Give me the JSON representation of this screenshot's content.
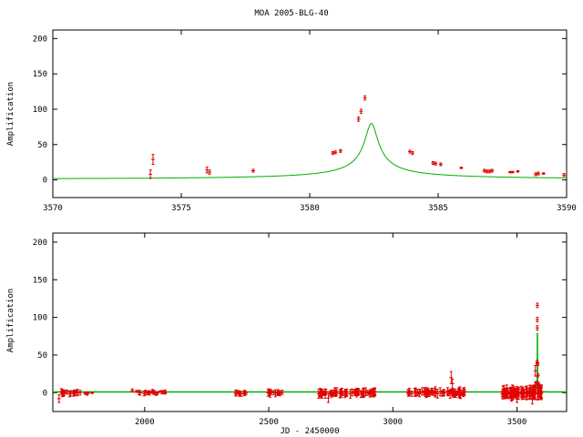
{
  "chart_data": [
    {
      "type": "line",
      "title": "MOA 2005-BLG-40",
      "ylabel": "Amplification",
      "xlabel": "",
      "xlim": [
        3570,
        3590
      ],
      "ylim": [
        -25,
        212
      ],
      "xticks": [
        3570,
        3575,
        3580,
        3585,
        3590
      ],
      "yticks": [
        0,
        50,
        100,
        150,
        200
      ],
      "grid": false,
      "model": {
        "t0": 3582.4,
        "u0": 0.006,
        "tE": 20.0,
        "rho": 0.011
      },
      "data_points": [
        {
          "x": 3573.8,
          "y": 8,
          "err": 6
        },
        {
          "x": 3573.9,
          "y": 29,
          "err": 7
        },
        {
          "x": 3576.0,
          "y": 14,
          "err": 4
        },
        {
          "x": 3576.1,
          "y": 11,
          "err": 3
        },
        {
          "x": 3577.8,
          "y": 13,
          "err": 2
        },
        {
          "x": 3580.9,
          "y": 38,
          "err": 2
        },
        {
          "x": 3581.0,
          "y": 39,
          "err": 2
        },
        {
          "x": 3581.2,
          "y": 41,
          "err": 2
        },
        {
          "x": 3581.9,
          "y": 86,
          "err": 3
        },
        {
          "x": 3582.0,
          "y": 97,
          "err": 3
        },
        {
          "x": 3582.15,
          "y": 116,
          "err": 3
        },
        {
          "x": 3583.9,
          "y": 40,
          "err": 2
        },
        {
          "x": 3584.0,
          "y": 38,
          "err": 2
        },
        {
          "x": 3584.8,
          "y": 24,
          "err": 2
        },
        {
          "x": 3584.9,
          "y": 23,
          "err": 2
        },
        {
          "x": 3585.1,
          "y": 22,
          "err": 2
        },
        {
          "x": 3585.9,
          "y": 17,
          "err": 1
        },
        {
          "x": 3586.8,
          "y": 13,
          "err": 2
        },
        {
          "x": 3586.9,
          "y": 12,
          "err": 2
        },
        {
          "x": 3587.0,
          "y": 12,
          "err": 2
        },
        {
          "x": 3587.1,
          "y": 13,
          "err": 2
        },
        {
          "x": 3587.8,
          "y": 11,
          "err": 1
        },
        {
          "x": 3587.9,
          "y": 11,
          "err": 1
        },
        {
          "x": 3588.1,
          "y": 12,
          "err": 1
        },
        {
          "x": 3588.8,
          "y": 8,
          "err": 2
        },
        {
          "x": 3588.9,
          "y": 9,
          "err": 2
        },
        {
          "x": 3589.1,
          "y": 9,
          "err": 1
        },
        {
          "x": 3589.9,
          "y": 7,
          "err": 2
        }
      ]
    },
    {
      "type": "line",
      "title": "",
      "ylabel": "Amplification",
      "xlabel": "JD - 2450000",
      "xlim": [
        1630,
        3700
      ],
      "ylim": [
        -25,
        212
      ],
      "xticks": [
        2000,
        2500,
        3000,
        3500
      ],
      "yticks": [
        0,
        50,
        100,
        150,
        200
      ],
      "grid": false,
      "model": {
        "t0": 3582.4,
        "u0": 0.006,
        "tE": 20.0,
        "rho": 0.011
      },
      "data_clusters": [
        {
          "from": 1650,
          "to": 1730,
          "points": 18,
          "err": 4
        },
        {
          "from": 1760,
          "to": 1790,
          "points": 4,
          "err": 2
        },
        {
          "from": 1960,
          "to": 2050,
          "points": 14,
          "err": 3
        },
        {
          "from": 2050,
          "to": 2090,
          "points": 8,
          "err": 2
        },
        {
          "from": 2360,
          "to": 2420,
          "points": 12,
          "err": 3
        },
        {
          "from": 2480,
          "to": 2560,
          "points": 14,
          "err": 4
        },
        {
          "from": 2700,
          "to": 2930,
          "points": 70,
          "err": 5
        },
        {
          "from": 3060,
          "to": 3290,
          "points": 70,
          "err": 5
        },
        {
          "from": 3440,
          "to": 3610,
          "points": 90,
          "err": 8
        }
      ],
      "data_points": [
        {
          "x": 1655,
          "y": -8,
          "err": 5
        },
        {
          "x": 1740,
          "y": 0,
          "err": 3
        },
        {
          "x": 1950,
          "y": 3,
          "err": 2
        },
        {
          "x": 2740,
          "y": -7,
          "err": 6
        },
        {
          "x": 3235,
          "y": 20,
          "err": 8
        },
        {
          "x": 3240,
          "y": 12,
          "err": 6
        },
        {
          "x": 3500,
          "y": -8,
          "err": 5
        },
        {
          "x": 3562,
          "y": -9,
          "err": 6
        },
        {
          "x": 3573.8,
          "y": 8,
          "err": 6
        },
        {
          "x": 3573.9,
          "y": 29,
          "err": 7
        },
        {
          "x": 3577.8,
          "y": 13,
          "err": 2
        },
        {
          "x": 3580.9,
          "y": 38,
          "err": 2
        },
        {
          "x": 3581.2,
          "y": 41,
          "err": 2
        },
        {
          "x": 3581.9,
          "y": 86,
          "err": 3
        },
        {
          "x": 3582.0,
          "y": 97,
          "err": 3
        },
        {
          "x": 3582.15,
          "y": 116,
          "err": 3
        },
        {
          "x": 3584.0,
          "y": 38,
          "err": 2
        },
        {
          "x": 3585.0,
          "y": 23,
          "err": 2
        },
        {
          "x": 3587.0,
          "y": 12,
          "err": 2
        },
        {
          "x": 3589.0,
          "y": 9,
          "err": 2
        }
      ]
    }
  ],
  "colors": {
    "model_line": "#00b000",
    "data_points": "#e00000",
    "axes": "#000000",
    "background": "#ffffff"
  }
}
